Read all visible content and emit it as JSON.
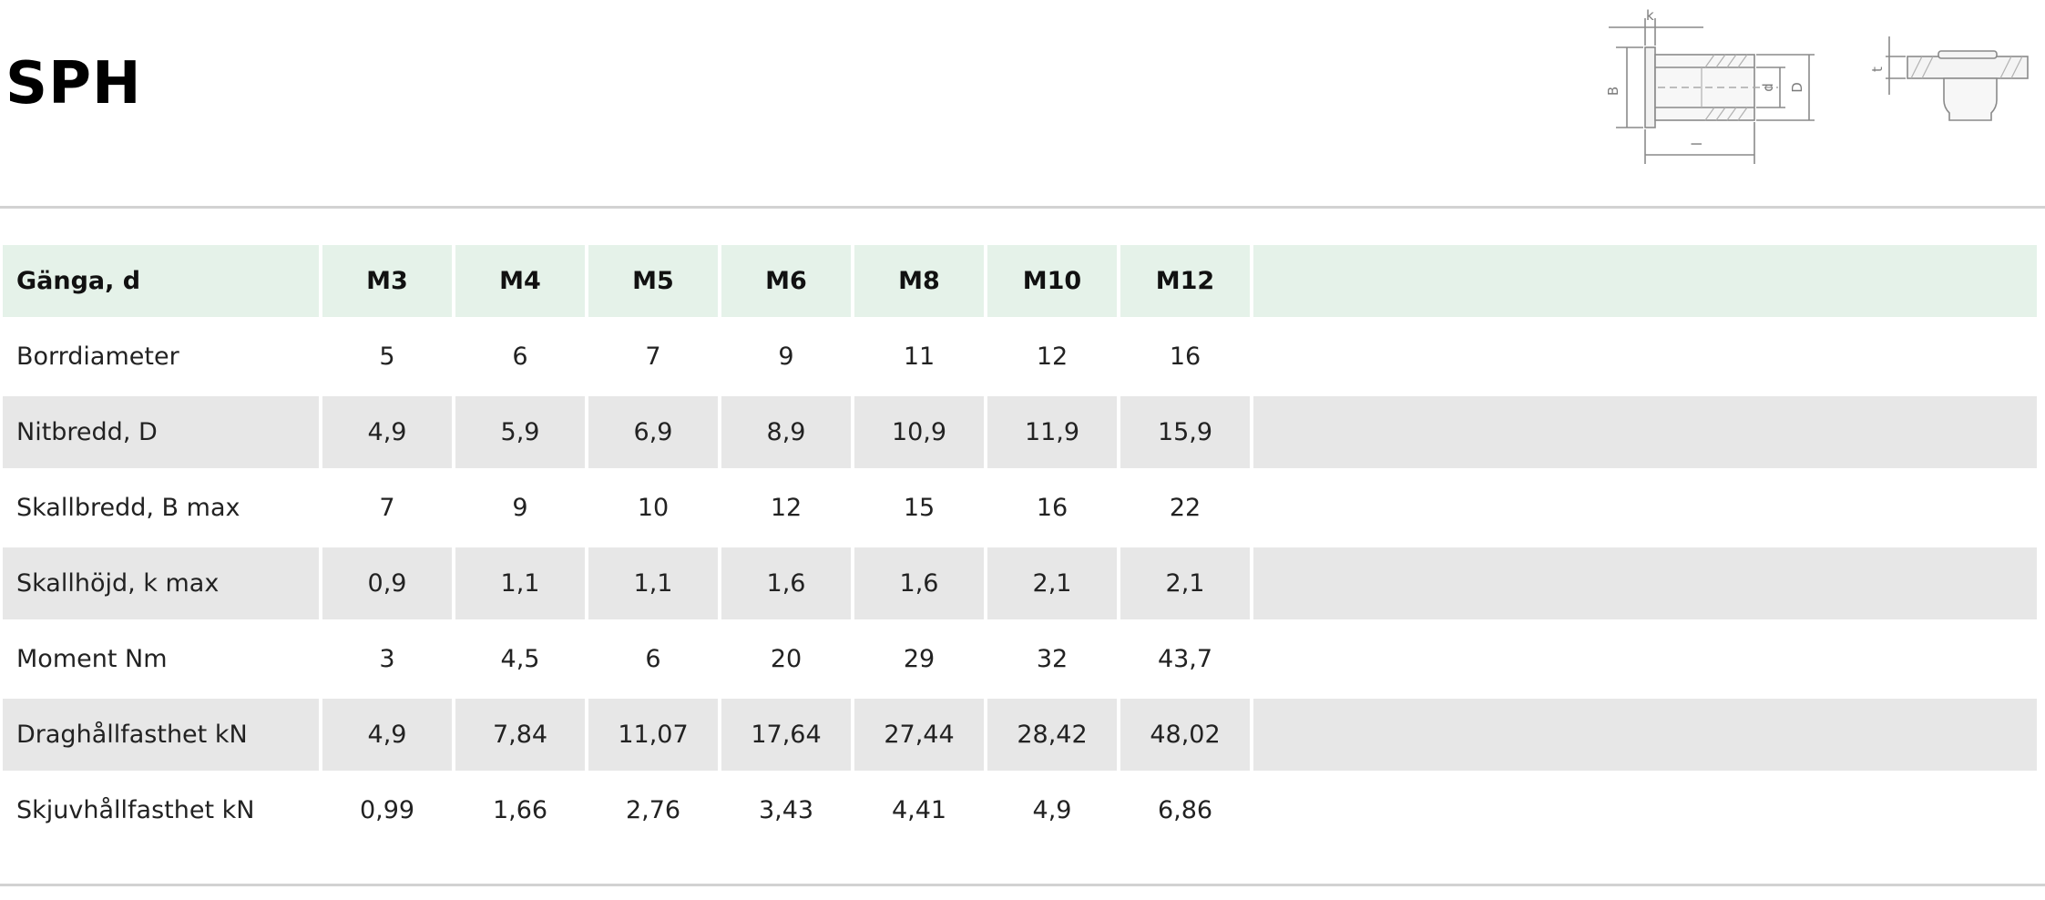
{
  "title": "SPH",
  "diagram": {
    "labels": {
      "k": "k",
      "B": "B",
      "d": "d",
      "D": "D",
      "l": "l",
      "t": "t"
    }
  },
  "table": {
    "header": {
      "label": "Gänga, d",
      "sizes": [
        "M3",
        "M4",
        "M5",
        "M6",
        "M8",
        "M10",
        "M12"
      ]
    },
    "rows": [
      {
        "label": "Borrdiameter",
        "values": [
          "5",
          "6",
          "7",
          "9",
          "11",
          "12",
          "16"
        ]
      },
      {
        "label": "Nitbredd, D",
        "values": [
          "4,9",
          "5,9",
          "6,9",
          "8,9",
          "10,9",
          "11,9",
          "15,9"
        ]
      },
      {
        "label": "Skallbredd, B max",
        "values": [
          "7",
          "9",
          "10",
          "12",
          "15",
          "16",
          "22"
        ]
      },
      {
        "label": "Skallhöjd, k max",
        "values": [
          "0,9",
          "1,1",
          "1,1",
          "1,6",
          "1,6",
          "2,1",
          "2,1"
        ]
      },
      {
        "label": "Moment Nm",
        "values": [
          "3",
          "4,5",
          "6",
          "20",
          "29",
          "32",
          "43,7"
        ]
      },
      {
        "label": "Draghållfasthet kN",
        "values": [
          "4,9",
          "7,84",
          "11,07",
          "17,64",
          "27,44",
          "28,42",
          "48,02"
        ]
      },
      {
        "label": "Skjuvhållfasthet kN",
        "values": [
          "0,99",
          "1,66",
          "2,76",
          "3,43",
          "4,41",
          "4,9",
          "6,86"
        ]
      }
    ]
  },
  "colors": {
    "header_bg": "#e5f2e9",
    "shaded_row_bg": "#e7e7e7",
    "rule": "#d2d2d2"
  }
}
